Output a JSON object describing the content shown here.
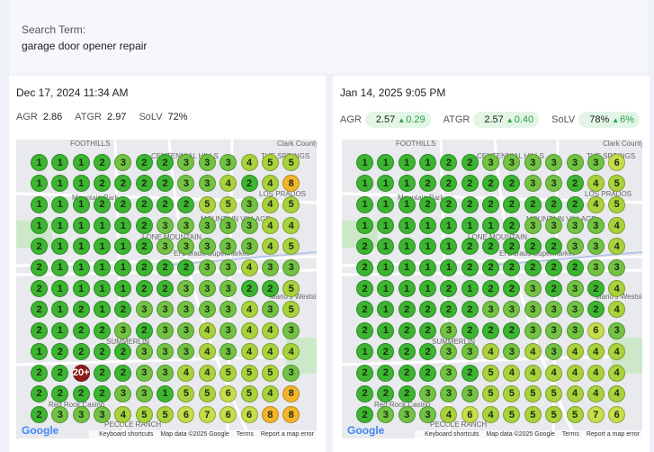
{
  "search": {
    "label": "Search Term:",
    "term": "garage door opener repair"
  },
  "reports": [
    {
      "date": "Dec 17, 2024 11:34 AM",
      "metrics": [
        {
          "name": "AGR",
          "value": "2.86"
        },
        {
          "name": "ATGR",
          "value": "2.97"
        },
        {
          "name": "SoLV",
          "value": "72%"
        }
      ],
      "grid": [
        [
          1,
          1,
          1,
          2,
          3,
          2,
          2,
          3,
          3,
          3,
          4,
          5,
          5
        ],
        [
          1,
          1,
          1,
          2,
          2,
          2,
          2,
          3,
          3,
          4,
          2,
          4,
          8
        ],
        [
          1,
          1,
          1,
          2,
          2,
          2,
          2,
          2,
          5,
          5,
          3,
          4,
          5
        ],
        [
          1,
          1,
          1,
          1,
          1,
          2,
          3,
          3,
          3,
          3,
          3,
          4,
          4
        ],
        [
          2,
          1,
          1,
          1,
          1,
          2,
          3,
          3,
          3,
          3,
          3,
          4,
          5
        ],
        [
          2,
          1,
          1,
          1,
          1,
          2,
          2,
          2,
          3,
          3,
          4,
          3,
          3
        ],
        [
          2,
          1,
          1,
          1,
          1,
          2,
          2,
          3,
          3,
          3,
          2,
          2,
          5
        ],
        [
          2,
          1,
          2,
          1,
          2,
          3,
          3,
          3,
          3,
          3,
          4,
          3,
          5
        ],
        [
          2,
          1,
          2,
          2,
          3,
          2,
          3,
          3,
          4,
          3,
          4,
          4,
          3
        ],
        [
          1,
          2,
          2,
          2,
          2,
          3,
          3,
          3,
          4,
          3,
          4,
          4,
          4
        ],
        [
          2,
          2,
          "20+",
          2,
          2,
          3,
          3,
          4,
          4,
          5,
          5,
          5,
          3
        ],
        [
          2,
          2,
          2,
          2,
          3,
          3,
          1,
          5,
          5,
          6,
          5,
          4,
          8
        ],
        [
          2,
          3,
          3,
          3,
          4,
          5,
          5,
          6,
          7,
          6,
          6,
          8,
          8
        ]
      ]
    },
    {
      "date": "Jan 14, 2025 9:05 PM",
      "metrics": [
        {
          "name": "AGR",
          "value": "2.57",
          "change": "0.29"
        },
        {
          "name": "ATGR",
          "value": "2.57",
          "change": "0.40"
        },
        {
          "name": "SoLV",
          "value": "78%",
          "change": "6%"
        }
      ],
      "grid": [
        [
          1,
          1,
          1,
          1,
          2,
          2,
          3,
          3,
          3,
          3,
          3,
          3,
          6
        ],
        [
          1,
          1,
          1,
          2,
          2,
          2,
          2,
          2,
          3,
          3,
          2,
          4,
          5
        ],
        [
          1,
          1,
          1,
          2,
          2,
          2,
          2,
          2,
          2,
          2,
          2,
          4,
          5
        ],
        [
          1,
          1,
          1,
          1,
          1,
          1,
          1,
          2,
          3,
          3,
          3,
          3,
          4
        ],
        [
          2,
          1,
          1,
          1,
          1,
          2,
          2,
          2,
          2,
          2,
          3,
          3,
          4
        ],
        [
          2,
          1,
          1,
          1,
          1,
          2,
          2,
          2,
          2,
          2,
          2,
          3,
          3
        ],
        [
          2,
          1,
          1,
          1,
          2,
          1,
          2,
          2,
          3,
          2,
          3,
          2,
          4
        ],
        [
          2,
          1,
          2,
          2,
          2,
          2,
          3,
          3,
          3,
          3,
          3,
          2,
          4
        ],
        [
          2,
          1,
          2,
          2,
          3,
          2,
          2,
          2,
          3,
          3,
          3,
          6,
          3
        ],
        [
          1,
          2,
          2,
          2,
          3,
          3,
          4,
          3,
          4,
          3,
          4,
          4,
          4
        ],
        [
          2,
          2,
          2,
          2,
          3,
          2,
          5,
          4,
          4,
          4,
          4,
          4,
          4
        ],
        [
          2,
          2,
          2,
          3,
          3,
          3,
          5,
          5,
          5,
          5,
          4,
          4,
          4
        ],
        [
          2,
          3,
          3,
          3,
          4,
          6,
          4,
          5,
          5,
          5,
          5,
          7,
          6
        ]
      ]
    }
  ],
  "map": {
    "labels": [
      "FOOTHILLS",
      "CENTENNIAL HILLS",
      "THE SPRINGS",
      "Clark County",
      "Mountain Park",
      "LOS PRADOS",
      "MOUNTAIN VILLAGE",
      "LONE MOUNTAIN",
      "El Dorado Supermarket",
      "Mario's Westside",
      "Red Rock Casino",
      "PECOLE RANCH",
      "SUMMERLIN"
    ],
    "logo": "Google",
    "footer": [
      "Keyboard shortcuts",
      "Map data ©2025 Google",
      "Terms",
      "Report a map error"
    ]
  }
}
